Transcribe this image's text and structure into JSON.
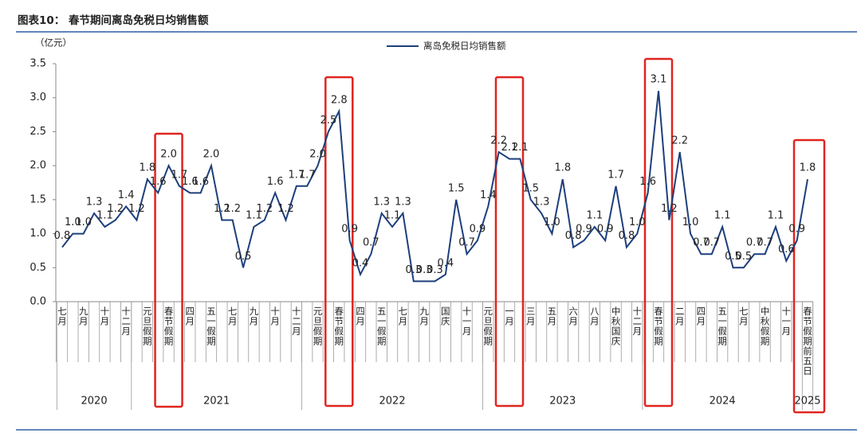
{
  "chart_data": {
    "type": "line",
    "title": "图表10： 春节期间离岛免税日均销售额",
    "y_unit": "（亿元）",
    "categories": [
      "七月",
      null,
      "九月",
      null,
      "十月",
      null,
      "十二月",
      null,
      "元旦假期",
      null,
      "春节假期",
      null,
      "四月",
      null,
      "五一假期",
      null,
      "七月",
      null,
      "九月",
      null,
      "十月",
      null,
      "十二月",
      null,
      "元旦假期",
      null,
      "春节假期",
      null,
      "四月",
      null,
      "五一假期",
      null,
      "七月",
      null,
      "九月",
      null,
      "国庆",
      null,
      "十一月",
      null,
      "元旦假期",
      null,
      "一月",
      null,
      "三月",
      null,
      "五月",
      null,
      "六月",
      null,
      "八月",
      null,
      "中秋国庆",
      null,
      "十二月",
      null,
      "春节假期",
      null,
      "二月",
      null,
      "四月",
      null,
      "五一假期",
      null,
      "七月",
      null,
      "中秋假期",
      null,
      "十一月",
      null,
      "春节假期前五日"
    ],
    "years": [
      "2020",
      "2021",
      "2022",
      "2023",
      "2024",
      "2025"
    ],
    "series": [
      {
        "name": "离岛免税日均销售额",
        "color": "#1d3f7c",
        "values": [
          0.8,
          1.0,
          1.0,
          1.3,
          1.1,
          1.2,
          1.4,
          1.2,
          1.8,
          1.6,
          2.0,
          1.7,
          1.6,
          1.6,
          2.0,
          1.2,
          1.2,
          0.5,
          1.1,
          1.2,
          1.6,
          1.2,
          1.7,
          1.7,
          2.0,
          2.5,
          2.8,
          0.9,
          0.4,
          0.7,
          1.3,
          1.1,
          1.3,
          0.3,
          0.3,
          0.3,
          0.4,
          1.5,
          0.7,
          0.9,
          1.4,
          2.2,
          2.1,
          2.1,
          1.5,
          1.3,
          1.0,
          1.8,
          0.8,
          0.9,
          1.1,
          0.9,
          1.7,
          0.8,
          1.0,
          1.6,
          3.1,
          1.2,
          2.2,
          1.0,
          0.7,
          0.7,
          1.1,
          0.5,
          0.5,
          0.7,
          0.7,
          1.1,
          0.6,
          0.9,
          1.8
        ],
        "value_labels": [
          "0.8",
          "1.0",
          "1.0",
          "1.3",
          "1.1",
          "1.2",
          "1.4",
          "1.2",
          "1.8",
          "1.6",
          "2.0",
          "1.7",
          "1.6",
          "1.6",
          "2.0",
          "1.2",
          "1.2",
          "0.5",
          "1.1",
          "1.2",
          "1.6",
          "1.2",
          "1.7",
          "1.7",
          "2.0",
          "2.5",
          "2.8",
          "0.9",
          "0.4",
          "0.7",
          "1.3",
          "1.1",
          "1.3",
          "0.3",
          "0.3",
          "0.3",
          "0.4",
          "1.5",
          "0.7",
          "0.9",
          "1.4",
          "2.2",
          "2.1",
          "2.1",
          "1.5",
          "1.3",
          "1.0",
          "1.8",
          "0.8",
          "0.9",
          "1.1",
          "0.9",
          "1.7",
          "0.8",
          "1.0",
          "1.6",
          "3.1",
          "1.2",
          "2.2",
          "1.0",
          "0.7",
          "0.7",
          "1.1",
          "0.5",
          "0.5",
          "0.7",
          "0.7",
          "1.1",
          "0.6",
          "0.9",
          "1.8"
        ]
      }
    ],
    "ylim": [
      0,
      3.5
    ],
    "yticks": [
      {
        "value": 0,
        "label": "0.0"
      },
      0.5,
      {
        "value": 1,
        "label": "1.0"
      },
      1.5,
      {
        "value": 2,
        "label": "2.0"
      },
      2.5,
      {
        "value": 3,
        "label": "3.0"
      },
      3.5
    ],
    "legend": "top"
  }
}
